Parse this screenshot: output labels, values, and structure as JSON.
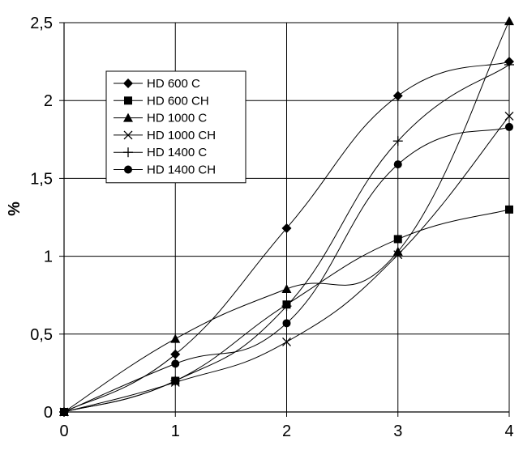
{
  "chart_data": {
    "type": "line",
    "title": "",
    "xlabel": "",
    "ylabel": "%",
    "x": [
      0,
      1,
      2,
      3,
      4
    ],
    "xlim": [
      0,
      4
    ],
    "ylim": [
      0,
      2.5
    ],
    "x_ticks": [
      "0",
      "1",
      "2",
      "3",
      "4"
    ],
    "y_ticks": [
      {
        "value": 0,
        "label": "0"
      },
      {
        "value": 0.5,
        "label": "0,5"
      },
      {
        "value": 1,
        "label": "1"
      },
      {
        "value": 1.5,
        "label": "1,5"
      },
      {
        "value": 2,
        "label": "2"
      },
      {
        "value": 2.5,
        "label": "2,5"
      }
    ],
    "grid": true,
    "legend_position": "upper-left",
    "series": [
      {
        "name": "HD 600 C",
        "marker": "diamond",
        "values": [
          0,
          0.37,
          1.18,
          2.03,
          2.25
        ]
      },
      {
        "name": "HD 600 CH",
        "marker": "square",
        "values": [
          0,
          0.2,
          0.69,
          1.11,
          1.3
        ]
      },
      {
        "name": "HD 1000 C",
        "marker": "triangle",
        "values": [
          0,
          0.47,
          0.79,
          1.03,
          2.51
        ]
      },
      {
        "name": "HD 1000 CH",
        "marker": "x",
        "values": [
          0,
          0.19,
          0.45,
          1.01,
          1.9
        ]
      },
      {
        "name": "HD 1400 C",
        "marker": "plus",
        "values": [
          0,
          0.2,
          0.68,
          1.74,
          2.23
        ]
      },
      {
        "name": "HD 1400 CH",
        "marker": "circle",
        "values": [
          0,
          0.31,
          0.57,
          1.59,
          1.83
        ]
      }
    ],
    "colors": {
      "line": "#000000",
      "grid": "#000000",
      "background": "#ffffff"
    }
  }
}
